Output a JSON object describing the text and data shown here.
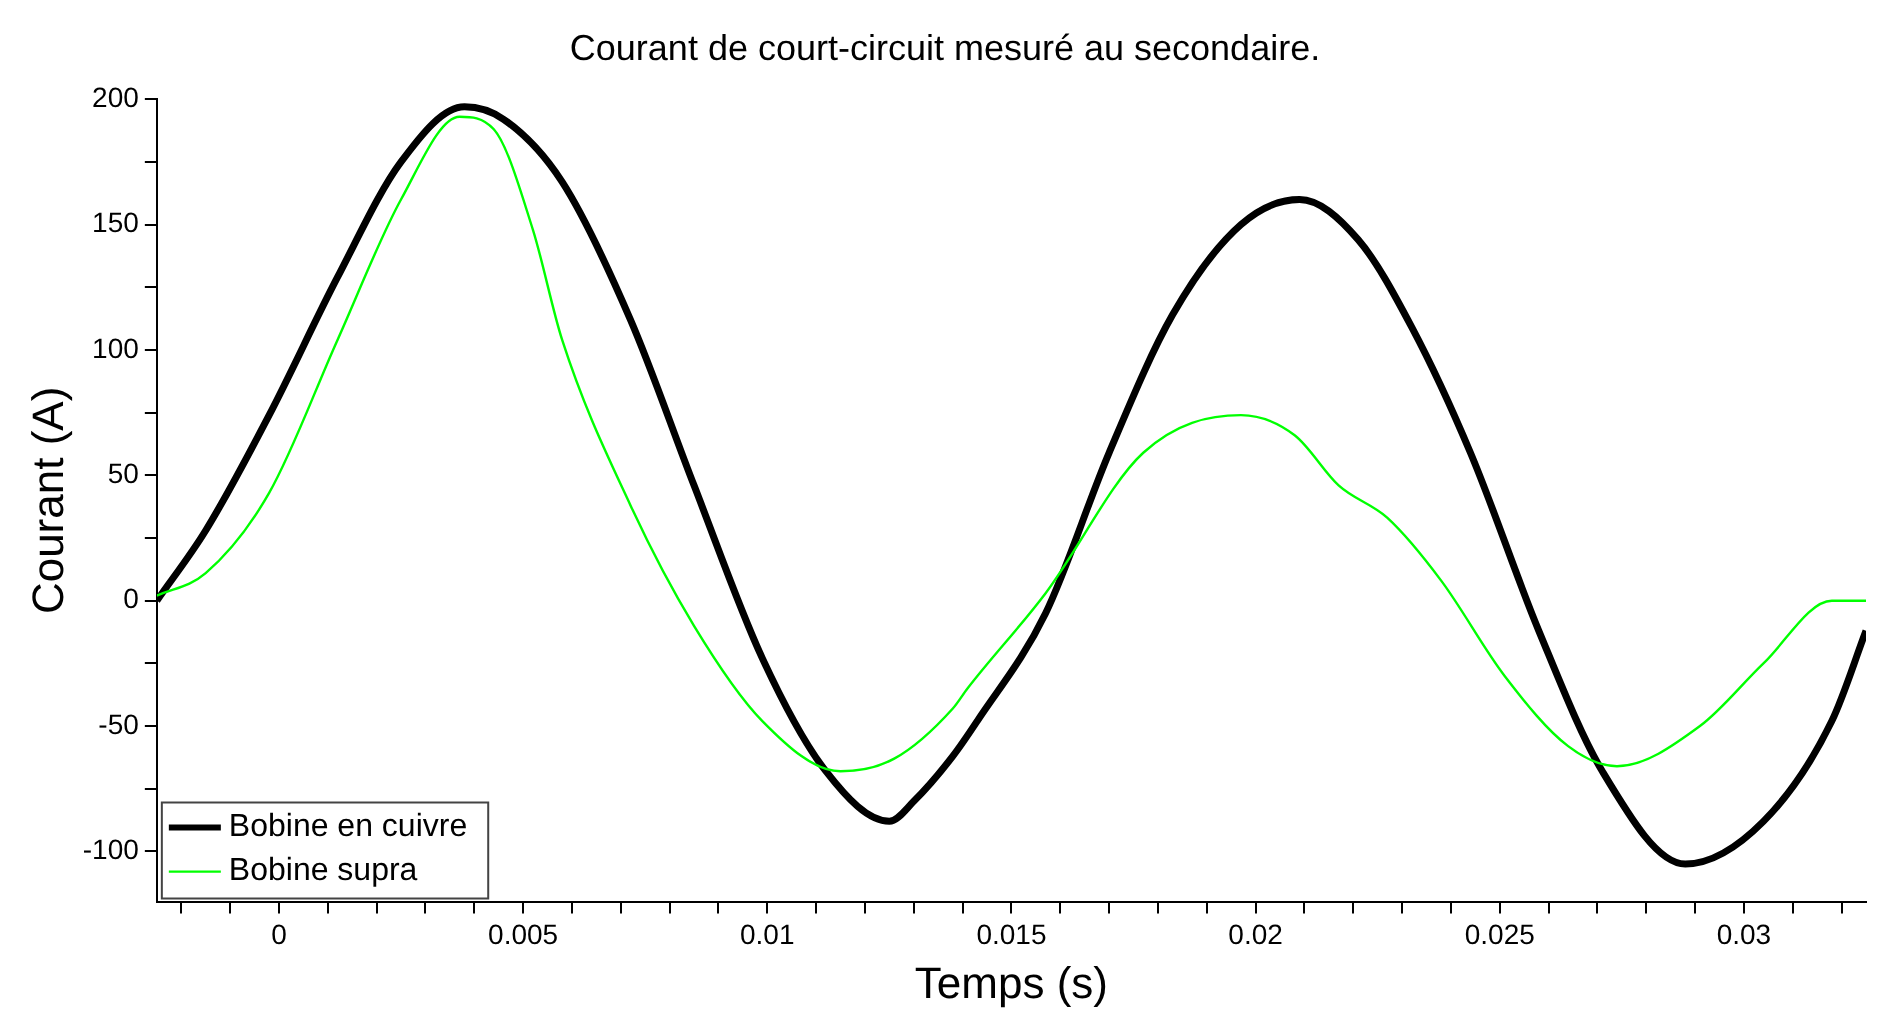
{
  "chart_data": {
    "type": "line",
    "title": "Courant de court-circuit mesuré au secondaire.",
    "xlabel": "Temps (s)",
    "ylabel": "Courant (A)",
    "xlim": [
      -0.0025,
      0.0325
    ],
    "ylim": [
      -120,
      200
    ],
    "xticks": [
      {
        "value": -0.002,
        "label": null
      },
      {
        "value": -0.001,
        "label": null
      },
      0,
      {
        "value": 0.001,
        "label": null
      },
      {
        "value": 0.002,
        "label": null
      },
      {
        "value": 0.003,
        "label": null
      },
      {
        "value": 0.004,
        "label": null
      },
      0.005,
      {
        "value": 0.006,
        "label": null
      },
      {
        "value": 0.007,
        "label": null
      },
      {
        "value": 0.008,
        "label": null
      },
      {
        "value": 0.009,
        "label": null
      },
      0.01,
      {
        "value": 0.011,
        "label": null
      },
      {
        "value": 0.012,
        "label": null
      },
      {
        "value": 0.013,
        "label": null
      },
      {
        "value": 0.014,
        "label": null
      },
      0.015,
      {
        "value": 0.016,
        "label": null
      },
      {
        "value": 0.017,
        "label": null
      },
      {
        "value": 0.018,
        "label": null
      },
      {
        "value": 0.019,
        "label": null
      },
      0.02,
      {
        "value": 0.021,
        "label": null
      },
      {
        "value": 0.022,
        "label": null
      },
      {
        "value": 0.023,
        "label": null
      },
      {
        "value": 0.024,
        "label": null
      },
      0.025,
      {
        "value": 0.026,
        "label": null
      },
      {
        "value": 0.027,
        "label": null
      },
      {
        "value": 0.028,
        "label": null
      },
      {
        "value": 0.029,
        "label": null
      },
      0.03,
      {
        "value": 0.031,
        "label": null
      },
      {
        "value": 0.032,
        "label": null
      }
    ],
    "yticks": [
      -100,
      {
        "value": -75,
        "label": null
      },
      -50,
      {
        "value": -25,
        "label": null
      },
      0,
      {
        "value": 25,
        "label": null
      },
      50,
      {
        "value": 75,
        "label": null
      },
      100,
      {
        "value": 125,
        "label": null
      },
      150,
      {
        "value": 175,
        "label": null
      },
      200
    ],
    "grid": false,
    "legend": "bottom left",
    "marker": "none",
    "line_style": "solid",
    "series": [
      {
        "name": "Bobine en cuivre",
        "color": "#000000",
        "x": [
          -0.0025,
          -0.0015,
          -0.0002,
          0.0012,
          0.0025,
          0.0038,
          0.0046,
          0.0058,
          0.0072,
          0.0085,
          0.0099,
          0.0112,
          0.0125,
          0.013,
          0.0138,
          0.0143,
          0.0157,
          0.017,
          0.0183,
          0.0197,
          0.0209,
          0.0221,
          0.0232,
          0.0244,
          0.0258,
          0.0271,
          0.0288,
          0.0304,
          0.0318,
          0.0325
        ],
        "values": [
          0,
          28,
          74,
          129,
          175,
          197,
          192,
          167,
          112,
          46,
          -23,
          -68,
          -88,
          -80,
          -62,
          -48,
          -5,
          59,
          114,
          150,
          160,
          144,
          109,
          59,
          -12,
          -68,
          -105,
          -88,
          -48,
          -12
        ]
      },
      {
        "name": "Bobine supra",
        "color": "#00ff00",
        "x": [
          -0.0025,
          -0.0015,
          -0.0002,
          0.0012,
          0.0025,
          0.0037,
          0.0044,
          0.0052,
          0.0058,
          0.0072,
          0.0085,
          0.0099,
          0.0115,
          0.0126,
          0.0138,
          0.0141,
          0.0157,
          0.0177,
          0.0197,
          0.0208,
          0.0217,
          0.0227,
          0.0238,
          0.0251,
          0.0264,
          0.0274,
          0.0291,
          0.0304,
          0.0318,
          0.0325
        ],
        "values": [
          2,
          11,
          43,
          104,
          160,
          193,
          188,
          148,
          104,
          38,
          -10,
          -48,
          -68,
          -63,
          -43,
          -35,
          3,
          59,
          74,
          66,
          46,
          33,
          8,
          -30,
          -58,
          -66,
          -50,
          -25,
          0,
          0
        ]
      }
    ]
  }
}
